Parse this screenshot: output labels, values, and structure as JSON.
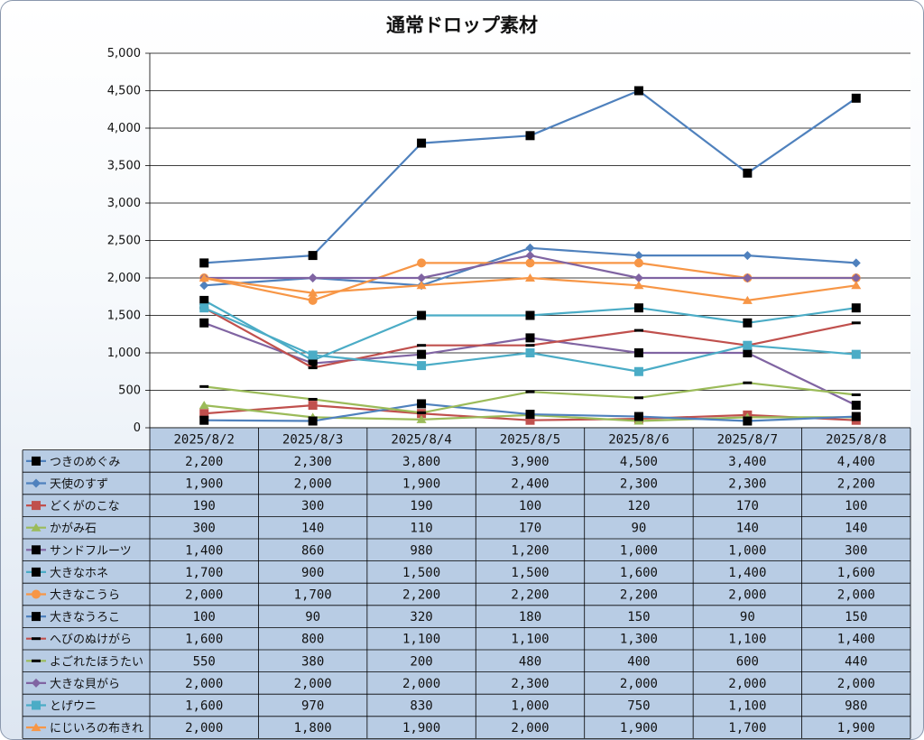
{
  "chart_data": {
    "type": "line",
    "title": "通常ドロップ素材",
    "xlabel": "",
    "ylabel": "",
    "ylim": [
      0,
      5000
    ],
    "yticks": [
      "0",
      "500",
      "1,000",
      "1,500",
      "2,000",
      "2,500",
      "3,000",
      "3,500",
      "4,000",
      "4,500",
      "5,000"
    ],
    "grid": true,
    "legend": "data-table",
    "categories": [
      "2025/8/2",
      "2025/8/3",
      "2025/8/4",
      "2025/8/5",
      "2025/8/6",
      "2025/8/7",
      "2025/8/8"
    ],
    "series": [
      {
        "name": "つきのめぐみ",
        "color": "#4f81bd",
        "marker": "square-black",
        "values": [
          2200,
          2300,
          3800,
          3900,
          4500,
          3400,
          4400
        ],
        "labels": [
          "2,200",
          "2,300",
          "3,800",
          "3,900",
          "4,500",
          "3,400",
          "4,400"
        ]
      },
      {
        "name": "天使のすず",
        "color": "#4f81bd",
        "marker": "diamond",
        "values": [
          1900,
          2000,
          1900,
          2400,
          2300,
          2300,
          2200
        ],
        "labels": [
          "1,900",
          "2,000",
          "1,900",
          "2,400",
          "2,300",
          "2,300",
          "2,200"
        ]
      },
      {
        "name": "どくがのこな",
        "color": "#c0504d",
        "marker": "square",
        "values": [
          190,
          300,
          190,
          100,
          120,
          170,
          100
        ],
        "labels": [
          "190",
          "300",
          "190",
          "100",
          "120",
          "170",
          "100"
        ]
      },
      {
        "name": "かがみ石",
        "color": "#9bbb59",
        "marker": "triangle",
        "values": [
          300,
          140,
          110,
          170,
          90,
          140,
          140
        ],
        "labels": [
          "300",
          "140",
          "110",
          "170",
          "90",
          "140",
          "140"
        ]
      },
      {
        "name": "サンドフルーツ",
        "color": "#8064a2",
        "marker": "square-black",
        "values": [
          1400,
          860,
          980,
          1200,
          1000,
          1000,
          300
        ],
        "labels": [
          "1,400",
          "860",
          "980",
          "1,200",
          "1,000",
          "1,000",
          "300"
        ]
      },
      {
        "name": "大きなホネ",
        "color": "#4bacc6",
        "marker": "square-black",
        "values": [
          1700,
          900,
          1500,
          1500,
          1600,
          1400,
          1600
        ],
        "labels": [
          "1,700",
          "900",
          "1,500",
          "1,500",
          "1,600",
          "1,400",
          "1,600"
        ]
      },
      {
        "name": "大きなこうら",
        "color": "#f79646",
        "marker": "circle",
        "values": [
          2000,
          1700,
          2200,
          2200,
          2200,
          2000,
          2000
        ],
        "labels": [
          "2,000",
          "1,700",
          "2,200",
          "2,200",
          "2,200",
          "2,000",
          "2,000"
        ]
      },
      {
        "name": "大きなうろこ",
        "color": "#4f81bd",
        "marker": "square-black",
        "values": [
          100,
          90,
          320,
          180,
          150,
          90,
          150
        ],
        "labels": [
          "100",
          "90",
          "320",
          "180",
          "150",
          "90",
          "150"
        ]
      },
      {
        "name": "へびのぬけがら",
        "color": "#c0504d",
        "marker": "dash-black",
        "values": [
          1600,
          800,
          1100,
          1100,
          1300,
          1100,
          1400
        ],
        "labels": [
          "1,600",
          "800",
          "1,100",
          "1,100",
          "1,300",
          "1,100",
          "1,400"
        ]
      },
      {
        "name": "よごれたほうたい",
        "color": "#9bbb59",
        "marker": "dash-black",
        "values": [
          550,
          380,
          200,
          480,
          400,
          600,
          440
        ],
        "labels": [
          "550",
          "380",
          "200",
          "480",
          "400",
          "600",
          "440"
        ]
      },
      {
        "name": "大きな貝がら",
        "color": "#8064a2",
        "marker": "diamond",
        "values": [
          2000,
          2000,
          2000,
          2300,
          2000,
          2000,
          2000
        ],
        "labels": [
          "2,000",
          "2,000",
          "2,000",
          "2,300",
          "2,000",
          "2,000",
          "2,000"
        ]
      },
      {
        "name": "とげウニ",
        "color": "#4bacc6",
        "marker": "square",
        "values": [
          1600,
          970,
          830,
          1000,
          750,
          1100,
          980
        ],
        "labels": [
          "1,600",
          "970",
          "830",
          "1,000",
          "750",
          "1,100",
          "980"
        ]
      },
      {
        "name": "にじいろの布きれ",
        "color": "#f79646",
        "marker": "triangle",
        "values": [
          2000,
          1800,
          1900,
          2000,
          1900,
          1700,
          1900
        ],
        "labels": [
          "2,000",
          "1,800",
          "1,900",
          "2,000",
          "1,900",
          "1,700",
          "1,900"
        ]
      }
    ]
  }
}
